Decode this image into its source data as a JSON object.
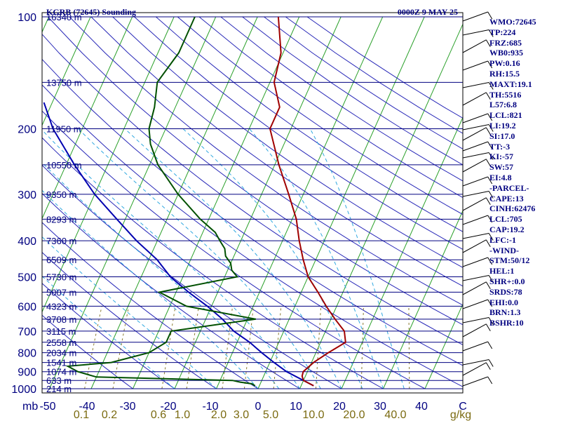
{
  "header": {
    "title": "KGRB (72645) Sounding",
    "time": "0000Z  9 MAY 25"
  },
  "chart_data": {
    "type": "line",
    "title": "KGRB (72645) Sounding",
    "pressure_levels": [
      100,
      200,
      300,
      400,
      500,
      600,
      700,
      800,
      900,
      1000
    ],
    "pressure_labels": [
      "100",
      "200",
      "300",
      "400",
      "500",
      "600",
      "700",
      "800",
      "900",
      "1000"
    ],
    "pressure_unit": "mb",
    "heights": [
      {
        "p": 100,
        "label": "16340 m"
      },
      {
        "p": 150,
        "label": "13750 m"
      },
      {
        "p": 200,
        "label": "11950 m"
      },
      {
        "p": 250,
        "label": "10550 m"
      },
      {
        "p": 300,
        "label": "9350 m"
      },
      {
        "p": 350,
        "label": "8293 m"
      },
      {
        "p": 400,
        "label": "7360 m"
      },
      {
        "p": 450,
        "label": "6509 m"
      },
      {
        "p": 500,
        "label": "5730 m"
      },
      {
        "p": 550,
        "label": "5007 m"
      },
      {
        "p": 600,
        "label": "4323 m"
      },
      {
        "p": 650,
        "label": "3708 m"
      },
      {
        "p": 700,
        "label": "3115 m"
      },
      {
        "p": 750,
        "label": "2558 m"
      },
      {
        "p": 800,
        "label": "2034 m"
      },
      {
        "p": 850,
        "label": "1541 m"
      },
      {
        "p": 900,
        "label": "1074 m"
      },
      {
        "p": 950,
        "label": "633 m"
      },
      {
        "p": 1000,
        "label": "214 m"
      }
    ],
    "temp_ticks": [
      "-50",
      "-40",
      "-30",
      "-20",
      "-10",
      "0",
      "10",
      "20",
      "30",
      "40",
      "C"
    ],
    "mixing_ratio_ticks": [
      "0.1",
      "0.2",
      "0.6",
      "1.0",
      "2.0",
      "3.0",
      "5.0",
      "10.0",
      "20.0",
      "40.0",
      "g/kg"
    ],
    "temperature_profile": [
      [
        982,
        13.0
      ],
      [
        950,
        10.0
      ],
      [
        925,
        9.2
      ],
      [
        900,
        9.0
      ],
      [
        850,
        10.5
      ],
      [
        800,
        13.0
      ],
      [
        750,
        16.0
      ],
      [
        700,
        14.5
      ],
      [
        650,
        11.0
      ],
      [
        600,
        7.5
      ],
      [
        550,
        4.0
      ],
      [
        500,
        0.0
      ],
      [
        450,
        -3.0
      ],
      [
        400,
        -6.0
      ],
      [
        350,
        -9.0
      ],
      [
        300,
        -13.5
      ],
      [
        250,
        -19.0
      ],
      [
        200,
        -25.0
      ],
      [
        175,
        -25.0
      ],
      [
        150,
        -29.0
      ],
      [
        125,
        -30.5
      ],
      [
        100,
        -35.0
      ]
    ],
    "dewpoint_profile": [
      [
        982,
        -1.0
      ],
      [
        970,
        -2.0
      ],
      [
        960,
        -5.0
      ],
      [
        950,
        -7.0
      ],
      [
        930,
        -40.0
      ],
      [
        900,
        -45.0
      ],
      [
        870,
        -48.0
      ],
      [
        850,
        -38.0
      ],
      [
        800,
        -30.0
      ],
      [
        750,
        -27.0
      ],
      [
        700,
        -27.0
      ],
      [
        650,
        -8.0
      ],
      [
        600,
        -26.0
      ],
      [
        550,
        -34.0
      ],
      [
        500,
        -17.0
      ],
      [
        480,
        -19.0
      ],
      [
        460,
        -20.0
      ],
      [
        440,
        -22.0
      ],
      [
        420,
        -23.0
      ],
      [
        400,
        -25.0
      ],
      [
        380,
        -27.0
      ],
      [
        350,
        -32.0
      ],
      [
        300,
        -40.0
      ],
      [
        250,
        -48.0
      ],
      [
        220,
        -52.0
      ],
      [
        200,
        -54.0
      ],
      [
        175,
        -55.0
      ],
      [
        150,
        -57.0
      ],
      [
        125,
        -55.0
      ],
      [
        100,
        -55.0
      ]
    ],
    "parcel_profile": [
      [
        982,
        13.0
      ],
      [
        950,
        10.0
      ],
      [
        900,
        5.0
      ],
      [
        850,
        1.0
      ],
      [
        800,
        -3.0
      ],
      [
        750,
        -7.0
      ],
      [
        700,
        -12.0
      ],
      [
        650,
        -16.0
      ],
      [
        600,
        -21.0
      ],
      [
        550,
        -27.0
      ],
      [
        500,
        -33.0
      ],
      [
        450,
        -38.0
      ],
      [
        400,
        -45.0
      ],
      [
        350,
        -52.0
      ],
      [
        300,
        -60.0
      ],
      [
        250,
        -68.0
      ],
      [
        200,
        -77.0
      ],
      [
        170,
        -82.0
      ]
    ],
    "series_colors": {
      "temperature": "#a00000",
      "dewpoint": "#005000",
      "parcel": "#0000b0"
    },
    "grid": true
  },
  "stats": [
    "WMO:72645",
    "TP:224",
    "FRZ:685",
    "WB0:935",
    "PW:0.16",
    "RH:15.5",
    "MAXT:19.1",
    "TH:5516",
    "L57:6.8",
    "LCL:821",
    "LI:19.2",
    "SI:17.0",
    "TT:-3",
    "KI:-57",
    "SW:57",
    "EI:4.8",
    "-PARCEL-",
    "CAPE:13",
    "CINH:62476",
    "LCL:705",
    "CAP:19.2",
    "LFC:-1",
    "-WIND-",
    "STM:50/12",
    "HEL:1",
    "SHR+:0.0",
    "SRDS:78",
    "EHI:0.0",
    "BRN:1.3",
    "BSHR:10"
  ]
}
